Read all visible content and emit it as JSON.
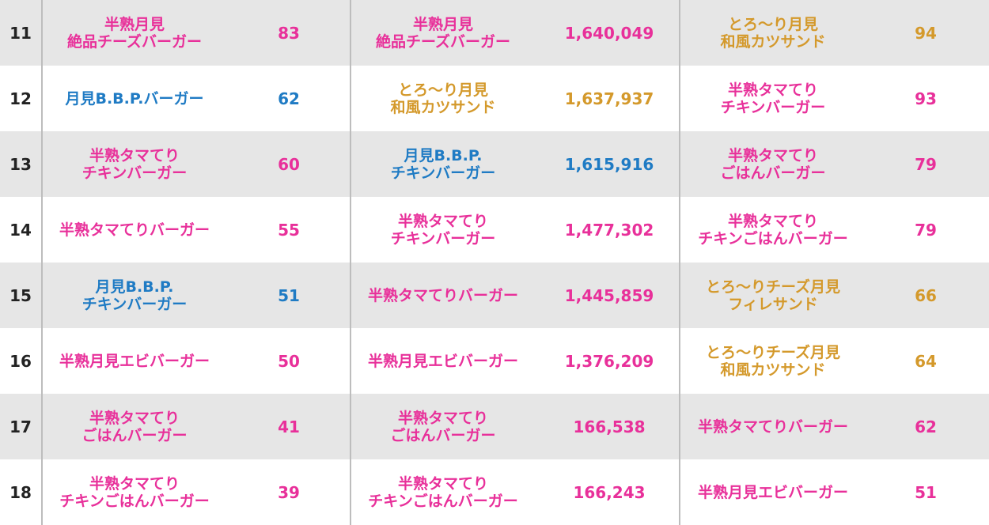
{
  "colors": {
    "pink": "#e8309a",
    "blue": "#1f7bc4",
    "gold": "#d4992b",
    "shaded_row": "#e6e6e6",
    "divider": "#bdbdbd"
  },
  "rows": [
    {
      "rank": "11",
      "col1": {
        "name": "半熟月見\n絶品チーズバーガー",
        "value": "83",
        "color": "pink"
      },
      "col2": {
        "name": "半熟月見\n絶品チーズバーガー",
        "value": "1,640,049",
        "color": "pink"
      },
      "col3": {
        "name": "とろ～り月見\n和風カツサンド",
        "value": "94",
        "color": "gold"
      }
    },
    {
      "rank": "12",
      "col1": {
        "name": "月見B.B.P.バーガー",
        "value": "62",
        "color": "blue"
      },
      "col2": {
        "name": "とろ～り月見\n和風カツサンド",
        "value": "1,637,937",
        "color": "gold"
      },
      "col3": {
        "name": "半熟タマてり\nチキンバーガー",
        "value": "93",
        "color": "pink"
      }
    },
    {
      "rank": "13",
      "col1": {
        "name": "半熟タマてり\nチキンバーガー",
        "value": "60",
        "color": "pink"
      },
      "col2": {
        "name": "月見B.B.P.\nチキンバーガー",
        "value": "1,615,916",
        "color": "blue"
      },
      "col3": {
        "name": "半熟タマてり\nごはんバーガー",
        "value": "79",
        "color": "pink"
      }
    },
    {
      "rank": "14",
      "col1": {
        "name": "半熟タマてりバーガー",
        "value": "55",
        "color": "pink"
      },
      "col2": {
        "name": "半熟タマてり\nチキンバーガー",
        "value": "1,477,302",
        "color": "pink"
      },
      "col3": {
        "name": "半熟タマてり\nチキンごはんバーガー",
        "value": "79",
        "color": "pink"
      }
    },
    {
      "rank": "15",
      "col1": {
        "name": "月見B.B.P.\nチキンバーガー",
        "value": "51",
        "color": "blue"
      },
      "col2": {
        "name": "半熟タマてりバーガー",
        "value": "1,445,859",
        "color": "pink"
      },
      "col3": {
        "name": "とろ～りチーズ月見\nフィレサンド",
        "value": "66",
        "color": "gold"
      }
    },
    {
      "rank": "16",
      "col1": {
        "name": "半熟月見エビバーガー",
        "value": "50",
        "color": "pink"
      },
      "col2": {
        "name": "半熟月見エビバーガー",
        "value": "1,376,209",
        "color": "pink"
      },
      "col3": {
        "name": "とろ～りチーズ月見\n和風カツサンド",
        "value": "64",
        "color": "gold"
      }
    },
    {
      "rank": "17",
      "col1": {
        "name": "半熟タマてり\nごはんバーガー",
        "value": "41",
        "color": "pink"
      },
      "col2": {
        "name": "半熟タマてり\nごはんバーガー",
        "value": "166,538",
        "color": "pink"
      },
      "col3": {
        "name": "半熟タマてりバーガー",
        "value": "62",
        "color": "pink"
      }
    },
    {
      "rank": "18",
      "col1": {
        "name": "半熟タマてり\nチキンごはんバーガー",
        "value": "39",
        "color": "pink"
      },
      "col2": {
        "name": "半熟タマてり\nチキンごはんバーガー",
        "value": "166,243",
        "color": "pink"
      },
      "col3": {
        "name": "半熟月見エビバーガー",
        "value": "51",
        "color": "pink"
      }
    }
  ]
}
